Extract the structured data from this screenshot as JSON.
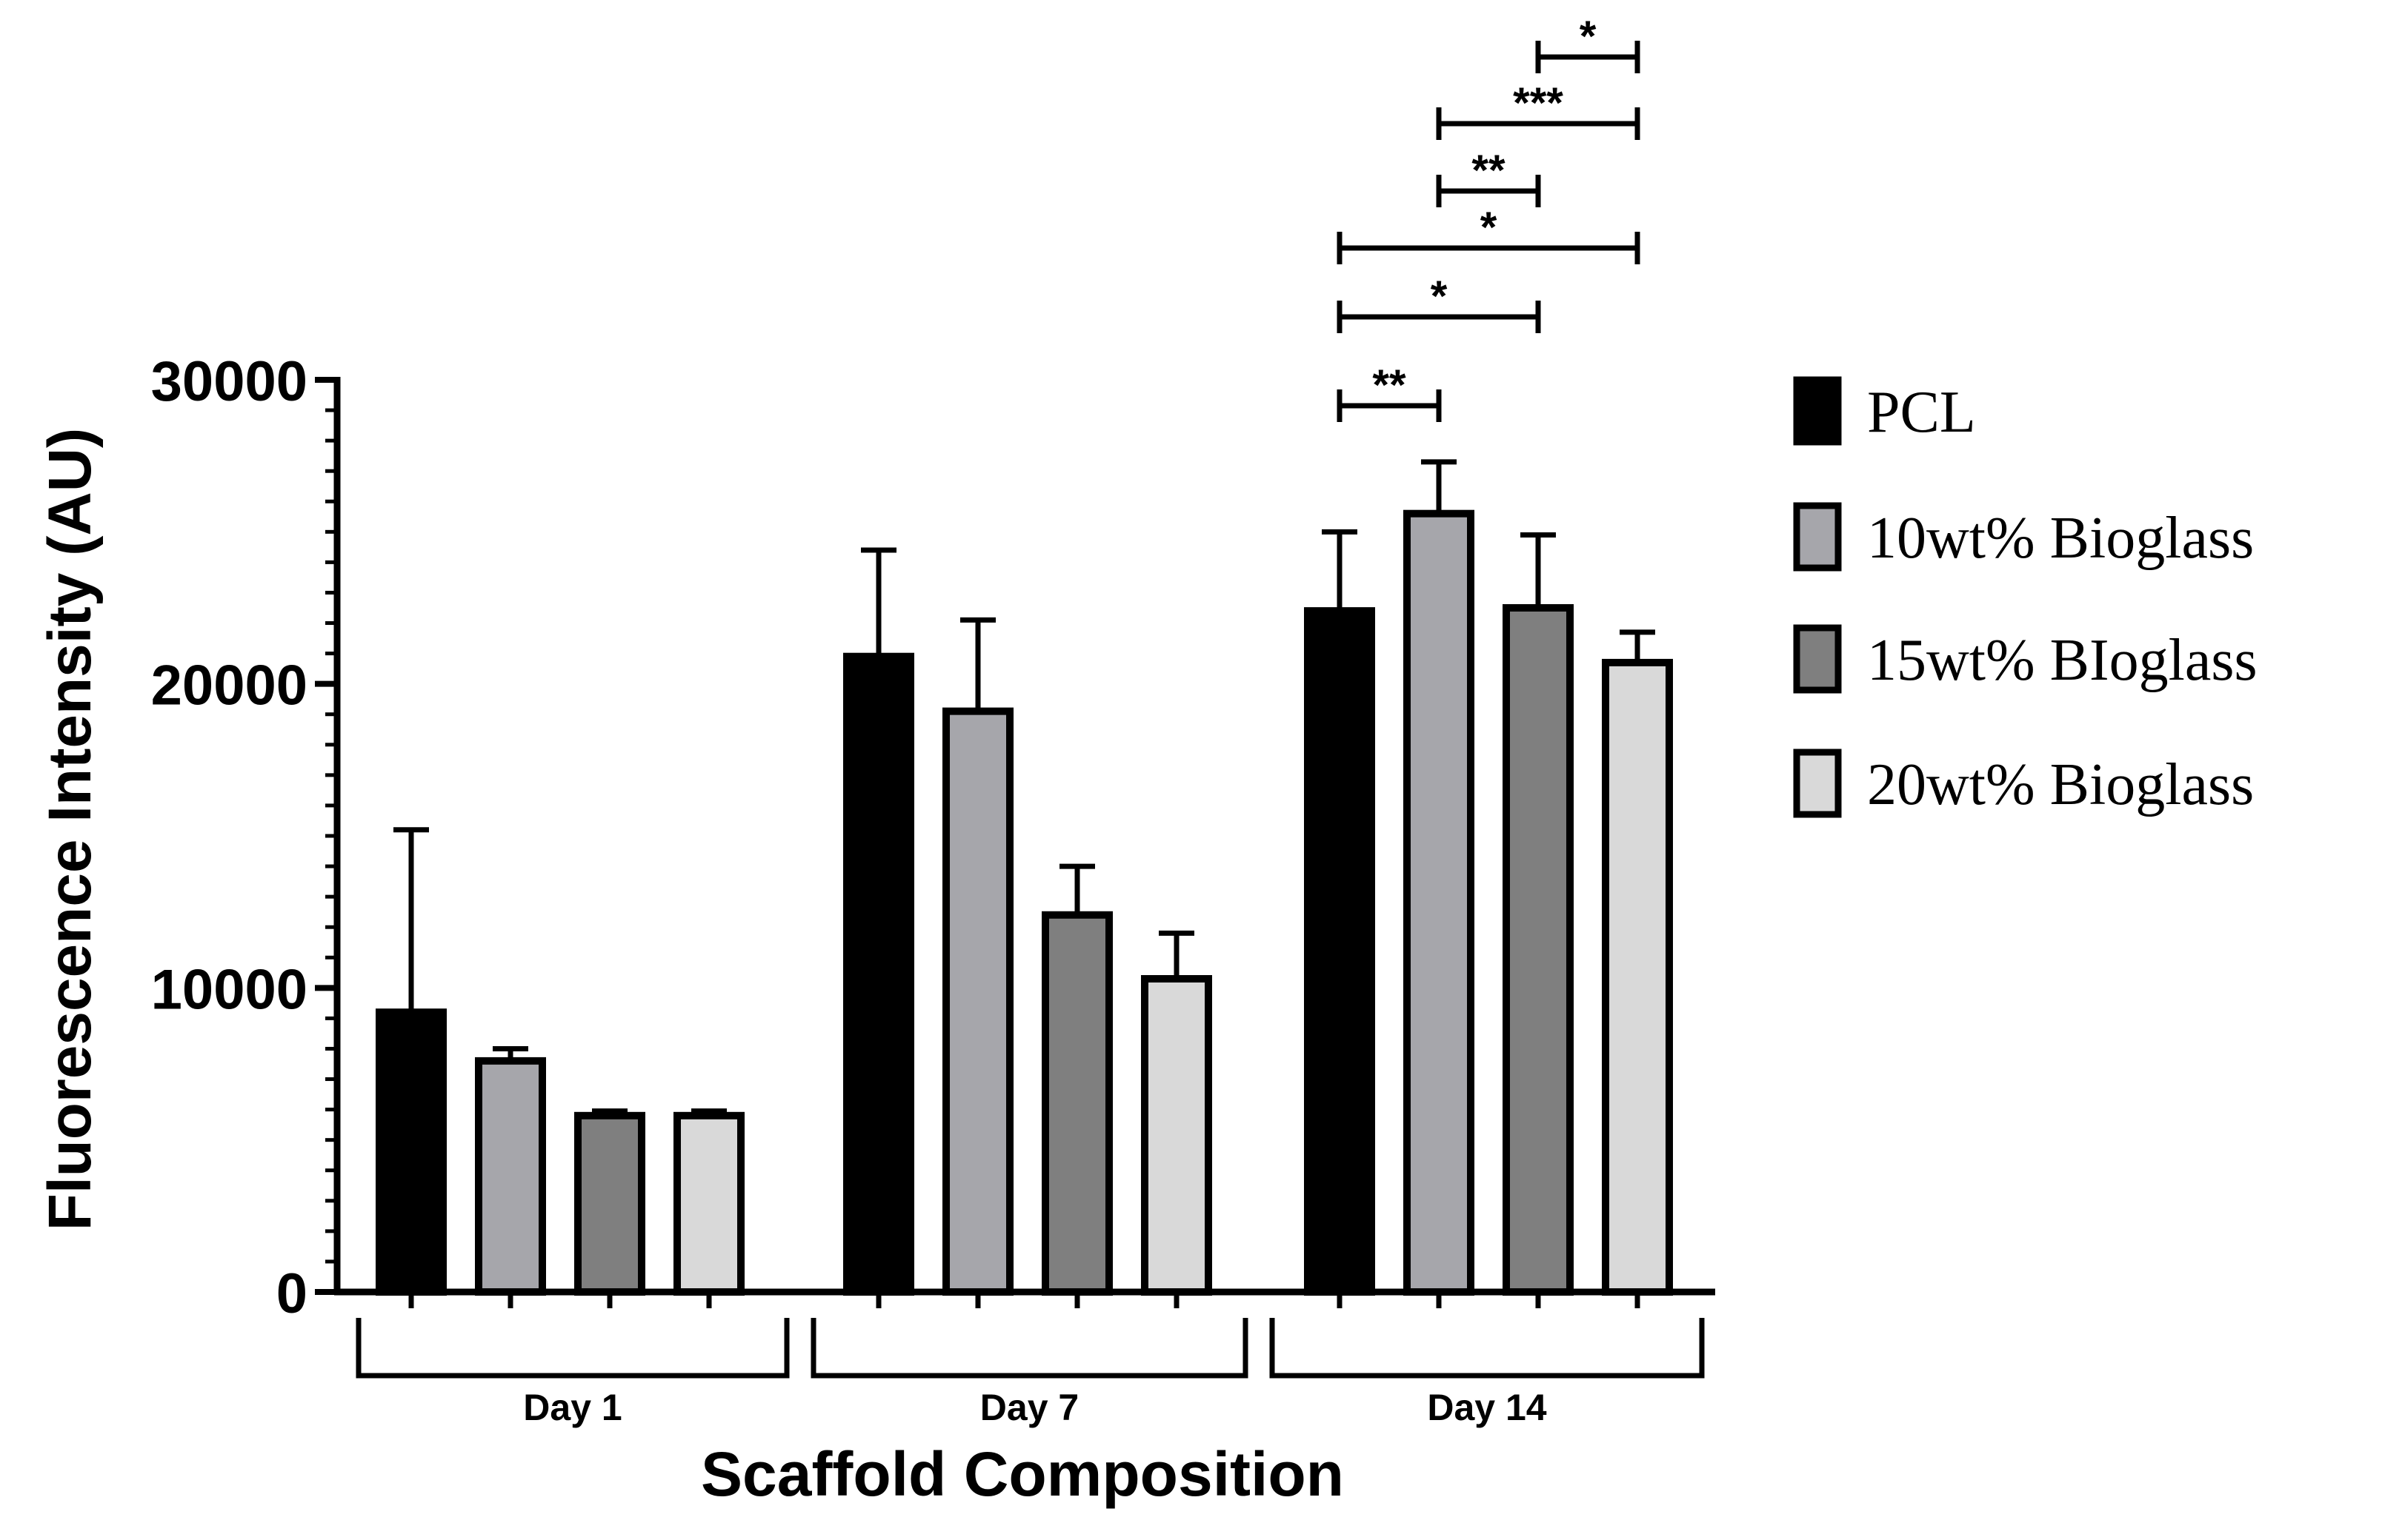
{
  "chart_data": {
    "type": "bar",
    "title": "",
    "xlabel": "Scaffold Composition",
    "ylabel": "Fluorescence Intensity (AU)",
    "ylim": [
      0,
      30000
    ],
    "yticks": [
      0,
      10000,
      20000,
      30000
    ],
    "ytick_labels": [
      "0",
      "10000",
      "20000",
      "30000"
    ],
    "categories": [
      "Day 1",
      "Day 7",
      "Day 14"
    ],
    "series": [
      {
        "name": "PCL",
        "color": "#000000",
        "values": [
          9200,
          20900,
          22400
        ],
        "errors": [
          6000,
          3500,
          2600
        ]
      },
      {
        "name": "10wt% Bioglass",
        "color": "#a6a6ab",
        "values": [
          7600,
          19100,
          25600
        ],
        "errors": [
          400,
          3000,
          1700
        ]
      },
      {
        "name": "15wt% BIoglass",
        "color": "#7f7f7f",
        "values": [
          5800,
          12400,
          22500
        ],
        "errors": [
          150,
          1600,
          2400
        ]
      },
      {
        "name": "20wt% Bioglass",
        "color": "#d9d9d9",
        "values": [
          5800,
          10300,
          20700
        ],
        "errors": [
          150,
          1500,
          1000
        ]
      }
    ],
    "significance": [
      {
        "group": "Day 14",
        "from": 0,
        "to": 1,
        "label": "**"
      },
      {
        "group": "Day 14",
        "from": 0,
        "to": 2,
        "label": "*"
      },
      {
        "group": "Day 14",
        "from": 0,
        "to": 3,
        "label": "*"
      },
      {
        "group": "Day 14",
        "from": 1,
        "to": 2,
        "label": "**"
      },
      {
        "group": "Day 14",
        "from": 1,
        "to": 3,
        "label": "***"
      },
      {
        "group": "Day 14",
        "from": 2,
        "to": 3,
        "label": "*"
      }
    ],
    "legend_position": "right"
  }
}
